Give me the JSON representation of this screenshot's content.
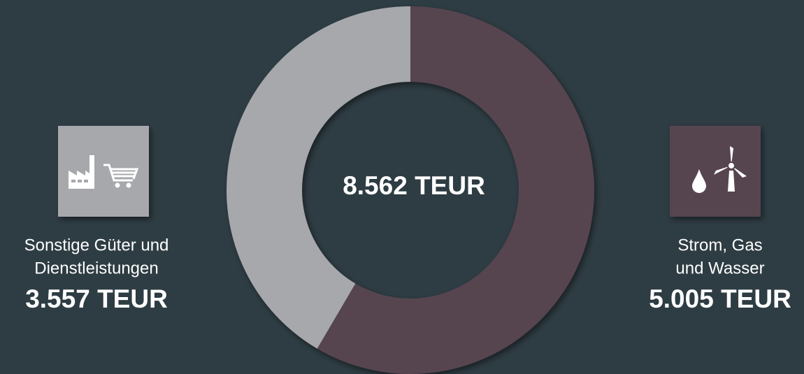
{
  "chart_data": {
    "type": "donut",
    "center_label": "8.562 TEUR",
    "categories": [
      [
        "Sonstige Güter und",
        "Dienstleistungen"
      ],
      [
        "Strom, Gas",
        "und Wasser"
      ]
    ],
    "values": [
      3557,
      5005
    ],
    "value_labels": [
      "3.557 TEUR",
      "5.005 TEUR"
    ],
    "colors": [
      "#a7a8ac",
      "#574450"
    ]
  }
}
